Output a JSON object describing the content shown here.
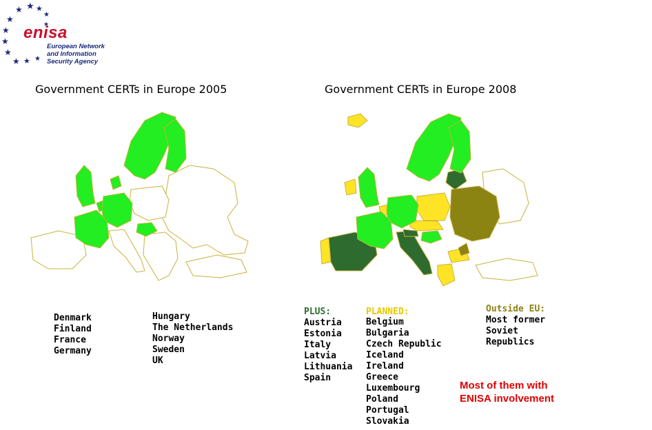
{
  "logo": {
    "brand": "enisa",
    "tagline": [
      "European Network",
      "and Information",
      "Security Agency"
    ]
  },
  "maps": {
    "left_title": "Government CERTs in Europe 2005",
    "right_title": "Government CERTs in Europe 2008"
  },
  "list_2005": {
    "col1": [
      "Denmark",
      "Finland",
      "France",
      "Germany"
    ],
    "col2": [
      "Hungary",
      "The Netherlands",
      "Norway",
      "Sweden",
      "UK"
    ]
  },
  "list_2008": {
    "plus_heading": "PLUS:",
    "plus": [
      "Austria",
      "Estonia",
      "Italy",
      "Latvia",
      "Lithuania",
      "Spain"
    ],
    "planned_heading": "PLANNED:",
    "planned": [
      "Belgium",
      "Bulgaria",
      "Czech Republic",
      "Iceland",
      "Ireland",
      "Greece",
      "Luxembourg",
      "Poland",
      "Portugal",
      "Slovakia"
    ],
    "outside_heading": "Outside EU:",
    "outside": [
      "Most former",
      "Soviet",
      "Republics"
    ]
  },
  "note": [
    "Most of them with",
    "ENISA involvement"
  ],
  "colors": {
    "existing": "#22ee22",
    "added": "#2e6b2e",
    "planned": "#ffe426",
    "outside_eu": "#8b8413",
    "brand_red": "#c8102e",
    "brand_blue": "#1a2a7a",
    "note_red": "#dd0000"
  }
}
